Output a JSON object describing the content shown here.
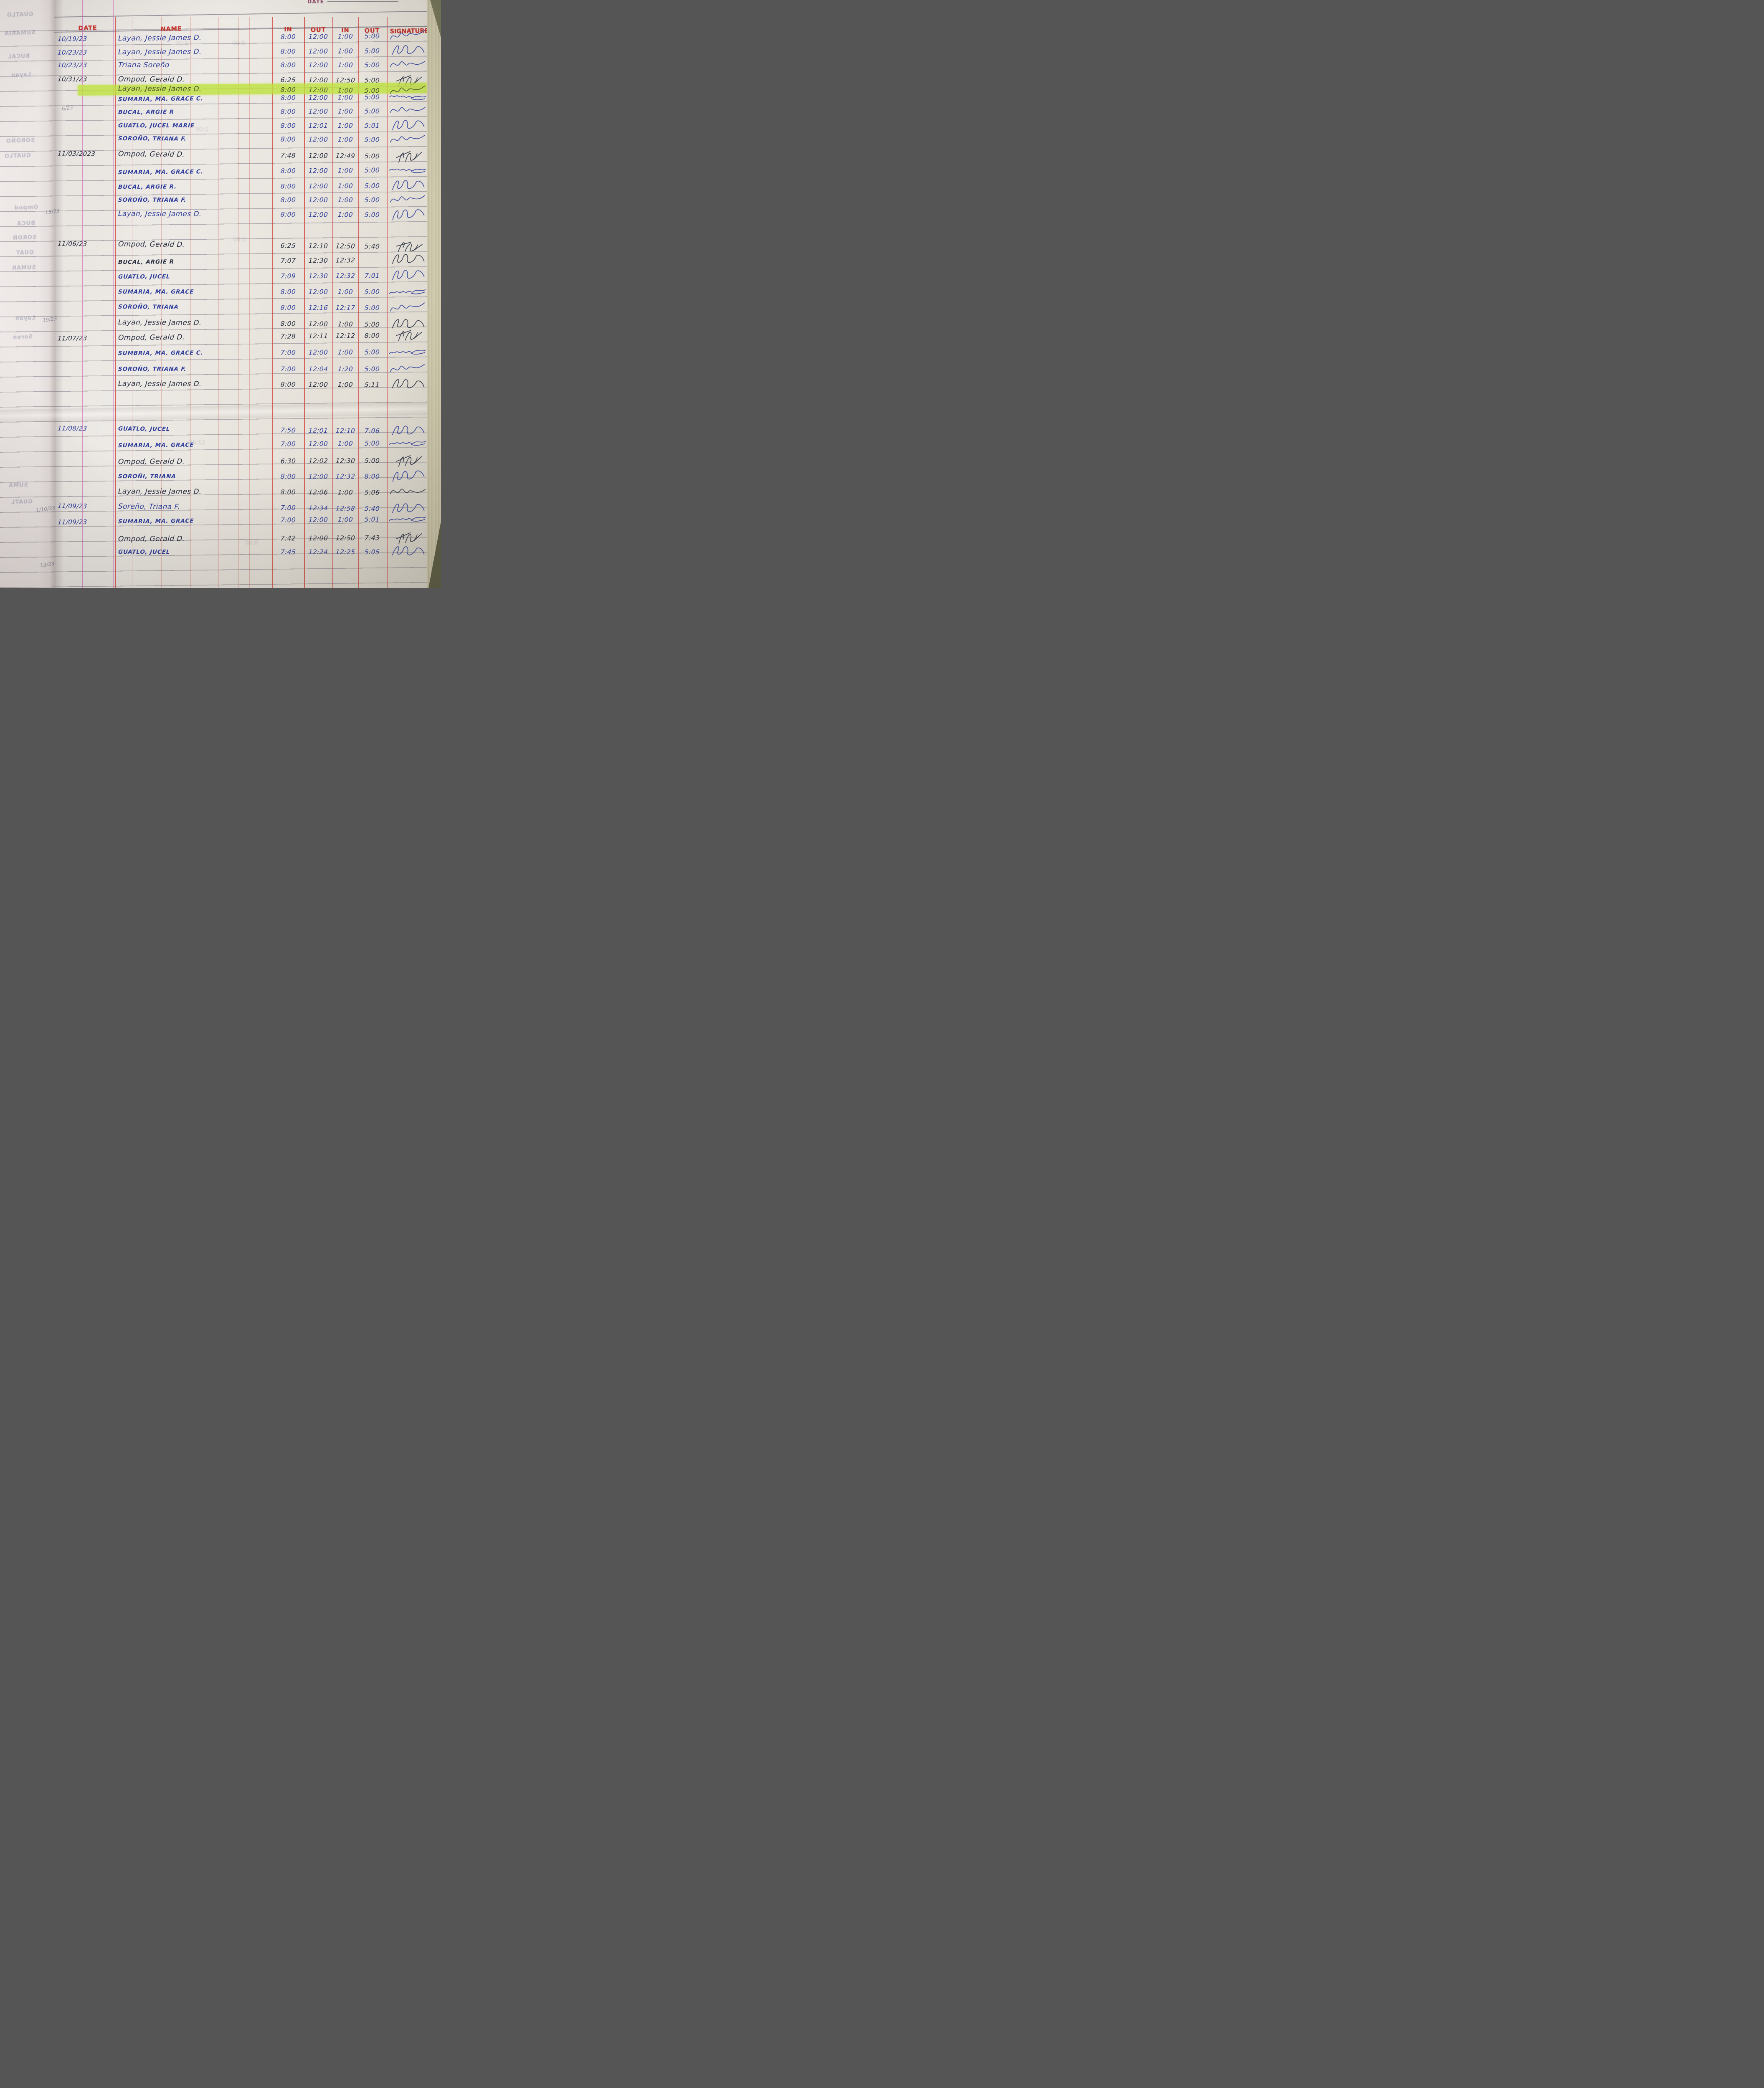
{
  "page": {
    "preprinted_date_label": "DATE",
    "columns": [
      "DATE",
      "NAME",
      "IN",
      "OUT",
      "IN",
      "OUT",
      "SIGNATURE"
    ],
    "colors": {
      "rule_red": "#d24840",
      "margin_magenta": "#cc4fae",
      "header_red": "#c2342c",
      "ink_blue": "#2e3d9b",
      "ink_dark": "#272d3f",
      "highlighter": "#bfe23c",
      "paper": "#e9e5e1"
    }
  },
  "rows": [
    {
      "date": "10/19/23",
      "name": "Layan, Jessie James D.",
      "in1": "8:00",
      "out1": "12:00",
      "in2": "1:00",
      "out2": "5:00",
      "ink": "blue",
      "highlight": false,
      "signed": true
    },
    {
      "date": "10/23/23",
      "name": "Layan, Jessie James D.",
      "in1": "8:00",
      "out1": "12:00",
      "in2": "1:00",
      "out2": "5:00",
      "ink": "blue",
      "highlight": false,
      "signed": true
    },
    {
      "date": "10/23/23",
      "name": "Triana Soreño",
      "in1": "8:00",
      "out1": "12:00",
      "in2": "1:00",
      "out2": "5:00",
      "ink": "blue",
      "highlight": false,
      "signed": true
    },
    {
      "date": "10/31/23",
      "name": "Ompod, Gerald D.",
      "in1": "6:25",
      "out1": "12:00",
      "in2": "12:50",
      "out2": "5:00",
      "ink": "dark",
      "highlight": false,
      "signed": true
    },
    {
      "date": "",
      "name": "Layan, Jessie James D.",
      "in1": "8:00",
      "out1": "12:00",
      "in2": "1:00",
      "out2": "5:00",
      "ink": "dark",
      "highlight": true,
      "signed": true
    },
    {
      "date": "",
      "name": "SUMARIA, MA. GRACE C.",
      "in1": "8:00",
      "out1": "12:00",
      "in2": "1:00",
      "out2": "5:00",
      "ink": "blue",
      "highlight": false,
      "signed": true
    },
    {
      "date": "",
      "name": "BUCAL, ARGIE R",
      "in1": "8:00",
      "out1": "12:00",
      "in2": "1:00",
      "out2": "5:00",
      "ink": "blue",
      "highlight": false,
      "signed": true
    },
    {
      "date": "",
      "name": "GUATLO, JUCEL MARIE",
      "in1": "8:00",
      "out1": "12:01",
      "in2": "1:00",
      "out2": "5:01",
      "ink": "blue",
      "highlight": false,
      "signed": true
    },
    {
      "date": "",
      "name": "SOROÑO, TRIANA F.",
      "in1": "8:00",
      "out1": "12:00",
      "in2": "1:00",
      "out2": "5:00",
      "ink": "blue",
      "highlight": false,
      "signed": true
    },
    {
      "date": "11/03/2023",
      "name": "Ompod, Gerald D.",
      "in1": "7:48",
      "out1": "12:00",
      "in2": "12:49",
      "out2": "5:00",
      "ink": "dark",
      "highlight": false,
      "signed": true
    },
    {
      "date": "",
      "name": "SUMARIA, MA. GRACE C.",
      "in1": "8:00",
      "out1": "12:00",
      "in2": "1:00",
      "out2": "5:00",
      "ink": "blue",
      "highlight": false,
      "signed": true
    },
    {
      "date": "",
      "name": "BUCAL, ARGIE R.",
      "in1": "8:00",
      "out1": "12:00",
      "in2": "1:00",
      "out2": "5:00",
      "ink": "blue",
      "highlight": false,
      "signed": true
    },
    {
      "date": "",
      "name": "SOROÑO, TRIANA F.",
      "in1": "8:00",
      "out1": "12:00",
      "in2": "1:00",
      "out2": "5:00",
      "ink": "blue",
      "highlight": false,
      "signed": true
    },
    {
      "date": "",
      "name": "Layan, Jessie James D.",
      "in1": "8:00",
      "out1": "12:00",
      "in2": "1:00",
      "out2": "5:00",
      "ink": "blue",
      "highlight": false,
      "signed": true
    },
    {
      "date": "11/06/23",
      "name": "Ompod, Gerald D.",
      "in1": "6:25",
      "out1": "12:10",
      "in2": "12:50",
      "out2": "5:40",
      "ink": "dark",
      "highlight": false,
      "signed": true
    },
    {
      "date": "",
      "name": "BUCAL, ARGIE R",
      "in1": "7:07",
      "out1": "12:30",
      "in2": "12:32",
      "out2": "",
      "ink": "dark",
      "highlight": false,
      "signed": true
    },
    {
      "date": "",
      "name": "GUATLO, JUCEL",
      "in1": "7:09",
      "out1": "12:30",
      "in2": "12:32",
      "out2": "7:01",
      "ink": "blue",
      "highlight": false,
      "signed": true
    },
    {
      "date": "",
      "name": "SUMARIA, MA. GRACE",
      "in1": "8:00",
      "out1": "12:00",
      "in2": "1:00",
      "out2": "5:00",
      "ink": "blue",
      "highlight": false,
      "signed": true
    },
    {
      "date": "",
      "name": "SOROÑO, TRIANA",
      "in1": "8:00",
      "out1": "12:16",
      "in2": "12:17",
      "out2": "5:00",
      "ink": "blue",
      "highlight": false,
      "signed": true
    },
    {
      "date": "",
      "name": "Layan, Jessie James D.",
      "in1": "8:00",
      "out1": "12:00",
      "in2": "1:00",
      "out2": "5:00",
      "ink": "dark",
      "highlight": false,
      "signed": true
    },
    {
      "date": "11/07/23",
      "name": "Ompod, Gerald D.",
      "in1": "7:28",
      "out1": "12:11",
      "in2": "12:12",
      "out2": "8:00",
      "ink": "dark",
      "highlight": false,
      "signed": true
    },
    {
      "date": "",
      "name": "SUMBRIA, MA. GRACE C.",
      "in1": "7:00",
      "out1": "12:00",
      "in2": "1:00",
      "out2": "5:00",
      "ink": "blue",
      "highlight": false,
      "signed": true
    },
    {
      "date": "",
      "name": "SOROÑO, TRIANA F.",
      "in1": "7:00",
      "out1": "12:04",
      "in2": "1:20",
      "out2": "5:00",
      "ink": "blue",
      "highlight": false,
      "signed": true
    },
    {
      "date": "",
      "name": "Layan, Jessie James D.",
      "in1": "8:00",
      "out1": "12:00",
      "in2": "1:00",
      "out2": "5:11",
      "ink": "dark",
      "highlight": false,
      "signed": true
    },
    {
      "date": "11/08/23",
      "name": "GUATLO, JUCEL",
      "in1": "7:50",
      "out1": "12:01",
      "in2": "12:10",
      "out2": "7:06",
      "ink": "blue",
      "highlight": false,
      "signed": true
    },
    {
      "date": "",
      "name": "SUMARIA, MA. GRACE",
      "in1": "7:00",
      "out1": "12:00",
      "in2": "1:00",
      "out2": "5:00",
      "ink": "blue",
      "highlight": false,
      "signed": true
    },
    {
      "date": "",
      "name": "Ompod, Gerald D.",
      "in1": "6:30",
      "out1": "12:02",
      "in2": "12:30",
      "out2": "5:00",
      "ink": "dark",
      "highlight": false,
      "signed": true
    },
    {
      "date": "",
      "name": "SOROÑI, TRIANA",
      "in1": "8:00",
      "out1": "12:00",
      "in2": "12:32",
      "out2": "8:00",
      "ink": "blue",
      "highlight": false,
      "signed": true
    },
    {
      "date": "",
      "name": "Layan, Jessie James D.",
      "in1": "8:00",
      "out1": "12:06",
      "in2": "1:00",
      "out2": "5:06",
      "ink": "dark",
      "highlight": false,
      "signed": true
    },
    {
      "date": "11/09/23",
      "name": "Soreño, Triana F.",
      "in1": "7:00",
      "out1": "12:34",
      "in2": "12:58",
      "out2": "5:40",
      "ink": "blue",
      "highlight": false,
      "signed": true
    },
    {
      "date": "11/09/23",
      "name": "SUMARIA, MA. GRACE",
      "in1": "7:00",
      "out1": "12:00",
      "in2": "1:00",
      "out2": "5:01",
      "ink": "blue",
      "highlight": false,
      "signed": true
    },
    {
      "date": "",
      "name": "Ompod, Gerald D.",
      "in1": "7:42",
      "out1": "12:00",
      "in2": "12:50",
      "out2": "7:43",
      "ink": "dark",
      "highlight": false,
      "signed": true
    },
    {
      "date": "",
      "name": "GUATLO, JUCEL",
      "in1": "7:45",
      "out1": "12:24",
      "in2": "12:25",
      "out2": "5:05",
      "ink": "blue",
      "highlight": false,
      "signed": true
    }
  ],
  "margin_ghosts": [
    "GUATLO",
    "SUMARIA",
    "BUCAL",
    "Layan",
    "SOROÑO",
    "GUATLO",
    "Ompod",
    "BUCA",
    "SOROÑ",
    "GUAT",
    "SUMAR",
    "Layan",
    "Soreñ",
    "SUMA",
    "GUATL"
  ],
  "margin_dates": [
    "15/23",
    "19/23",
    "6/23",
    "1/10/23",
    "13/23"
  ],
  "bleed_times": [
    "12:00",
    "8:00",
    "1:00",
    "5:00",
    "12:00",
    "8:00"
  ]
}
